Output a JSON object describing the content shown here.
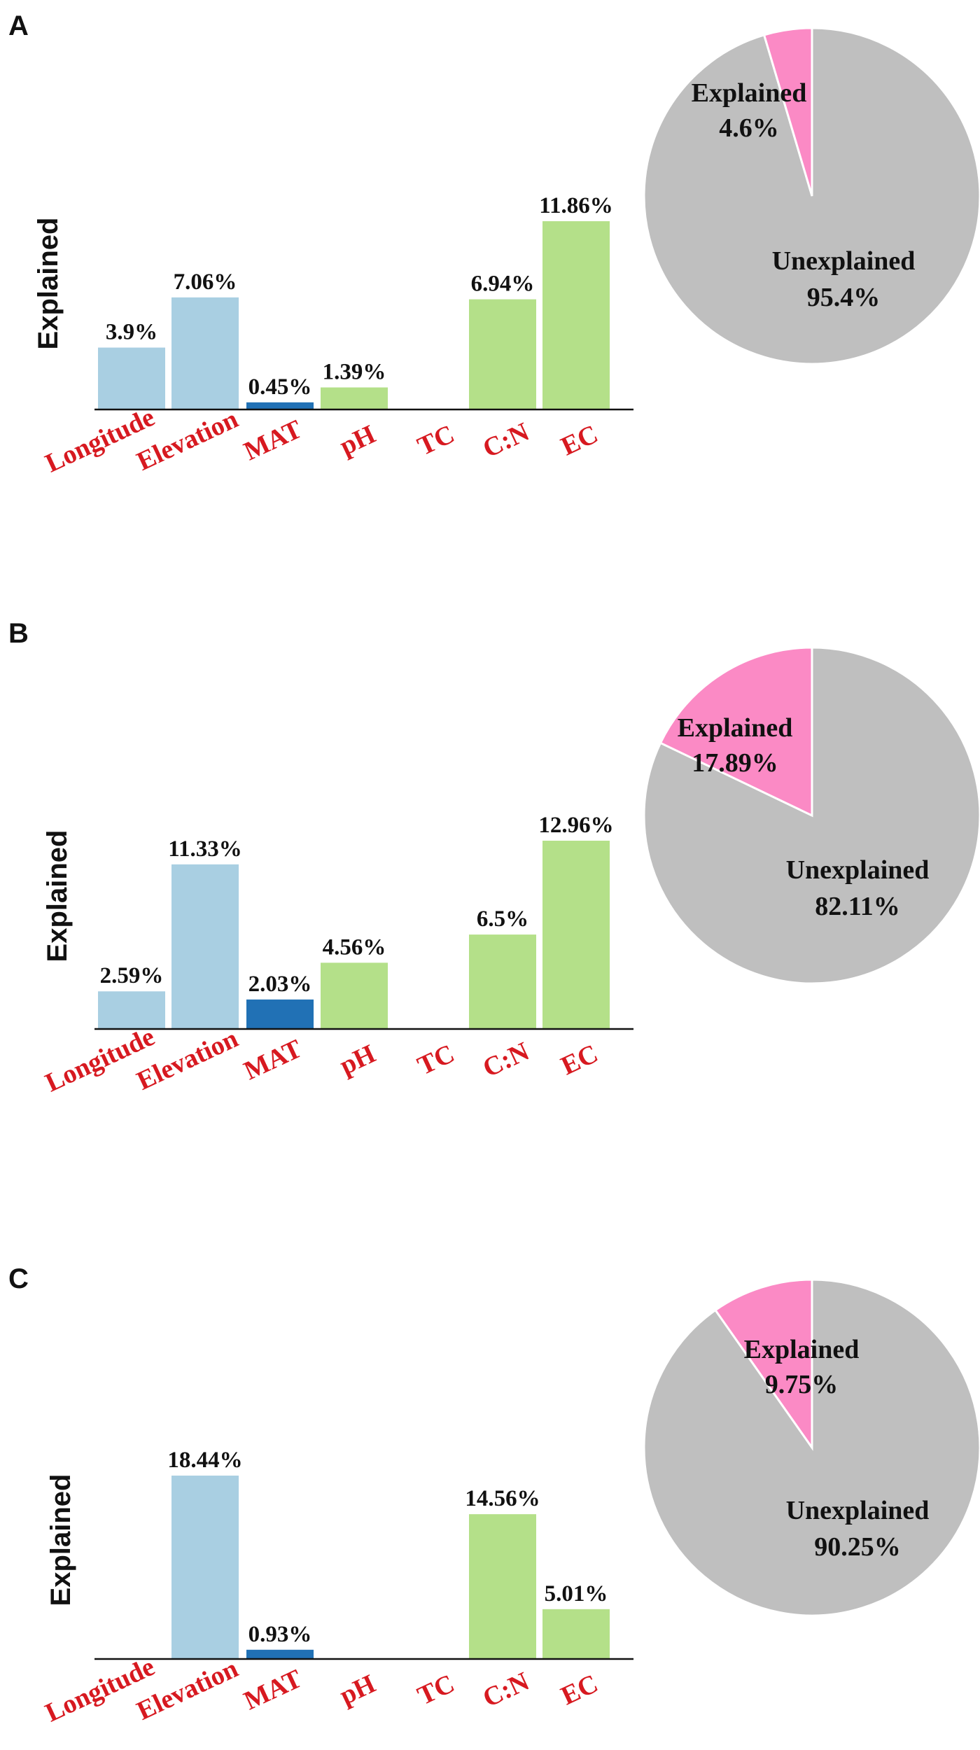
{
  "colors": {
    "longitude_elevation": "#a9cfe2",
    "mat": "#2171b5",
    "soil": "#b4e089",
    "explained_slice": "#fb8ac5",
    "unexplained_slice": "#bfbfbf",
    "tick_text": "#d71920",
    "axis": "#111111"
  },
  "chart_data": [
    {
      "panel": "A",
      "type": "bar",
      "ylabel": "Explained",
      "categories": [
        "Longitude",
        "Elevation",
        "MAT",
        "pH",
        "TC",
        "C:N",
        "EC"
      ],
      "values": [
        3.9,
        7.06,
        0.45,
        1.39,
        0,
        6.94,
        11.86
      ],
      "value_labels": [
        "3.9%",
        "7.06%",
        "0.45%",
        "1.39%",
        "",
        "6.94%",
        "11.86%"
      ],
      "bar_colors": [
        "longitude_elevation",
        "longitude_elevation",
        "mat",
        "soil",
        "soil",
        "soil",
        "soil"
      ],
      "ylim": [
        0,
        13
      ],
      "pie": {
        "type": "pie",
        "slices": [
          {
            "label": "Explained",
            "value": 4.6,
            "text": "4.6%",
            "color": "explained_slice"
          },
          {
            "label": "Unexplained",
            "value": 95.4,
            "text": "95.4%",
            "color": "unexplained_slice"
          }
        ]
      }
    },
    {
      "panel": "B",
      "type": "bar",
      "ylabel": "Explained",
      "categories": [
        "Longitude",
        "Elevation",
        "MAT",
        "pH",
        "TC",
        "C:N",
        "EC"
      ],
      "values": [
        2.59,
        11.33,
        2.03,
        4.56,
        0,
        6.5,
        12.96
      ],
      "value_labels": [
        "2.59%",
        "11.33%",
        "2.03%",
        "4.56%",
        "",
        "6.5%",
        "12.96%"
      ],
      "bar_colors": [
        "longitude_elevation",
        "longitude_elevation",
        "mat",
        "soil",
        "soil",
        "soil",
        "soil"
      ],
      "ylim": [
        0,
        13
      ],
      "pie": {
        "type": "pie",
        "slices": [
          {
            "label": "Explained",
            "value": 17.89,
            "text": "17.89%",
            "color": "explained_slice"
          },
          {
            "label": "Unexplained",
            "value": 82.11,
            "text": "82.11%",
            "color": "unexplained_slice"
          }
        ]
      }
    },
    {
      "panel": "C",
      "type": "bar",
      "ylabel": "Explained",
      "categories": [
        "Longitude",
        "Elevation",
        "MAT",
        "pH",
        "TC",
        "C:N",
        "EC"
      ],
      "values": [
        0,
        18.44,
        0.93,
        0,
        0,
        14.56,
        5.01
      ],
      "value_labels": [
        "",
        "18.44%",
        "0.93%",
        "",
        "",
        "14.56%",
        "5.01%"
      ],
      "bar_colors": [
        "longitude_elevation",
        "longitude_elevation",
        "mat",
        "soil",
        "soil",
        "soil",
        "soil"
      ],
      "ylim": [
        0,
        18.44
      ],
      "pie": {
        "type": "pie",
        "slices": [
          {
            "label": "Explained",
            "value": 9.75,
            "text": "9.75%",
            "color": "explained_slice"
          },
          {
            "label": "Unexplained",
            "value": 90.25,
            "text": "90.25%",
            "color": "unexplained_slice"
          }
        ]
      }
    }
  ]
}
